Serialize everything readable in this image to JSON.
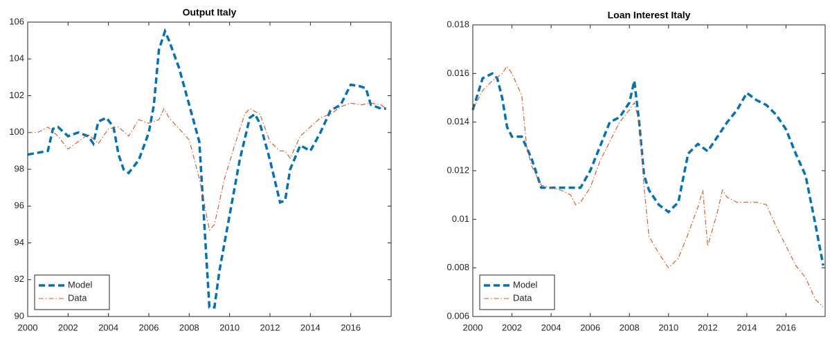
{
  "chart_data": [
    {
      "type": "line",
      "title": "Output Italy",
      "xlim": [
        2000,
        2018
      ],
      "ylim": [
        90,
        106
      ],
      "xticks": [
        2000,
        2002,
        2004,
        2006,
        2008,
        2010,
        2012,
        2014,
        2016
      ],
      "yticks": [
        90,
        92,
        94,
        96,
        98,
        100,
        102,
        104,
        106
      ],
      "grid": false,
      "legend": "lower left",
      "series": [
        {
          "name": "Model",
          "color": "#0072bd",
          "style": "dashed",
          "x": [
            2000,
            2000.5,
            2001,
            2001.25,
            2001.5,
            2002,
            2002.5,
            2003,
            2003.25,
            2003.5,
            2003.9,
            2004.25,
            2004.5,
            2004.75,
            2005,
            2005.5,
            2006,
            2006.25,
            2006.5,
            2006.8,
            2007,
            2007.5,
            2008,
            2008.5,
            2008.75,
            2009,
            2009.25,
            2009.5,
            2010,
            2010.5,
            2011,
            2011.25,
            2011.5,
            2012,
            2012.5,
            2012.75,
            2013,
            2013.5,
            2014,
            2014.5,
            2015,
            2015.5,
            2016,
            2016.5,
            2016.75,
            2017,
            2017.5,
            2017.75
          ],
          "values": [
            98.8,
            98.9,
            99.0,
            100.2,
            100.3,
            99.8,
            100.0,
            99.8,
            99.4,
            100.6,
            100.8,
            100.3,
            98.8,
            98.0,
            97.8,
            98.5,
            100.0,
            101.5,
            104.5,
            105.5,
            105.0,
            103.5,
            101.5,
            99.5,
            95,
            90.5,
            90.5,
            92.5,
            95.5,
            98.5,
            100.8,
            101.0,
            100.5,
            98.5,
            96.2,
            96.3,
            98,
            99.3,
            99,
            100,
            101.2,
            101.5,
            102.6,
            102.5,
            102.4,
            101.5,
            101.3,
            101.3
          ]
        },
        {
          "name": "Data",
          "color": "#d95319",
          "style": "dashdot",
          "x": [
            2000,
            2000.5,
            2001,
            2001.5,
            2002,
            2002.5,
            2003,
            2003.5,
            2004,
            2004.5,
            2005,
            2005.5,
            2006,
            2006.5,
            2006.75,
            2007,
            2007.5,
            2008,
            2008.5,
            2009,
            2009.25,
            2009.75,
            2010.25,
            2010.75,
            2011,
            2011.5,
            2012,
            2012.5,
            2012.75,
            2013,
            2013.5,
            2014,
            2014.5,
            2015,
            2015.5,
            2016,
            2016.5,
            2017,
            2017.5,
            2017.75
          ],
          "values": [
            100,
            100,
            100.3,
            99.8,
            99.1,
            99.5,
            99.9,
            99.4,
            100.2,
            100.3,
            99.8,
            100.7,
            100.5,
            100.7,
            101.3,
            100.8,
            100.2,
            99.6,
            97.5,
            94.7,
            95,
            97.5,
            99.3,
            101,
            101.3,
            101,
            99.5,
            99,
            99,
            98.6,
            99.8,
            100.3,
            100.8,
            101,
            101.4,
            101.6,
            101.5,
            101.6,
            101.5,
            101.3
          ]
        }
      ]
    },
    {
      "type": "line",
      "title": "Loan Interest Italy",
      "xlim": [
        2000,
        2018
      ],
      "ylim": [
        0.006,
        0.018
      ],
      "xticks": [
        2000,
        2002,
        2004,
        2006,
        2008,
        2010,
        2012,
        2014,
        2016
      ],
      "yticks": [
        0.006,
        0.008,
        0.01,
        0.012,
        0.014,
        0.016,
        0.018
      ],
      "grid": false,
      "legend": "lower left",
      "series": [
        {
          "name": "Model",
          "color": "#0072bd",
          "style": "dashed",
          "x": [
            2000,
            2000.5,
            2001,
            2001.25,
            2001.5,
            2001.75,
            2002,
            2002.5,
            2003,
            2003.5,
            2004,
            2004.5,
            2005,
            2005.5,
            2006,
            2006.5,
            2007,
            2007.5,
            2008,
            2008.25,
            2008.5,
            2008.75,
            2009,
            2009.5,
            2010,
            2010.5,
            2011,
            2011.5,
            2012,
            2012.5,
            2013,
            2013.5,
            2014,
            2014.5,
            2015,
            2015.5,
            2016,
            2016.5,
            2017,
            2017.5,
            2017.9
          ],
          "values": [
            0.0145,
            0.0158,
            0.016,
            0.0158,
            0.015,
            0.0138,
            0.0134,
            0.0134,
            0.0125,
            0.0113,
            0.0113,
            0.0113,
            0.0113,
            0.0113,
            0.012,
            0.013,
            0.014,
            0.0142,
            0.0148,
            0.0157,
            0.014,
            0.0118,
            0.0112,
            0.0106,
            0.0103,
            0.0107,
            0.0127,
            0.0131,
            0.0128,
            0.0134,
            0.014,
            0.0145,
            0.0152,
            0.0149,
            0.0147,
            0.0143,
            0.0137,
            0.0127,
            0.0118,
            0.0098,
            0.0081
          ]
        },
        {
          "name": "Data",
          "color": "#d95319",
          "style": "dashdot",
          "x": [
            2000,
            2000.5,
            2001,
            2001.5,
            2001.75,
            2002,
            2002.5,
            2002.75,
            2003,
            2003.5,
            2004,
            2004.5,
            2005,
            2005.25,
            2005.5,
            2006,
            2006.5,
            2007,
            2007.5,
            2008,
            2008.25,
            2008.5,
            2008.75,
            2009,
            2009.5,
            2010,
            2010.5,
            2011,
            2011.5,
            2011.75,
            2012,
            2012.5,
            2012.75,
            2013,
            2013.5,
            2014,
            2014.5,
            2015,
            2015.5,
            2016,
            2016.5,
            2017,
            2017.5,
            2017.9
          ],
          "values": [
            0.0145,
            0.0153,
            0.0157,
            0.016,
            0.0163,
            0.016,
            0.0151,
            0.013,
            0.0122,
            0.0114,
            0.0113,
            0.0112,
            0.011,
            0.0106,
            0.0107,
            0.0113,
            0.0124,
            0.0132,
            0.014,
            0.0145,
            0.0148,
            0.014,
            0.0113,
            0.0093,
            0.0086,
            0.008,
            0.0084,
            0.0094,
            0.0105,
            0.0112,
            0.0089,
            0.0103,
            0.0112,
            0.0109,
            0.0107,
            0.0107,
            0.0107,
            0.0106,
            0.0097,
            0.0089,
            0.0081,
            0.0076,
            0.0067,
            0.0064
          ]
        }
      ]
    }
  ]
}
